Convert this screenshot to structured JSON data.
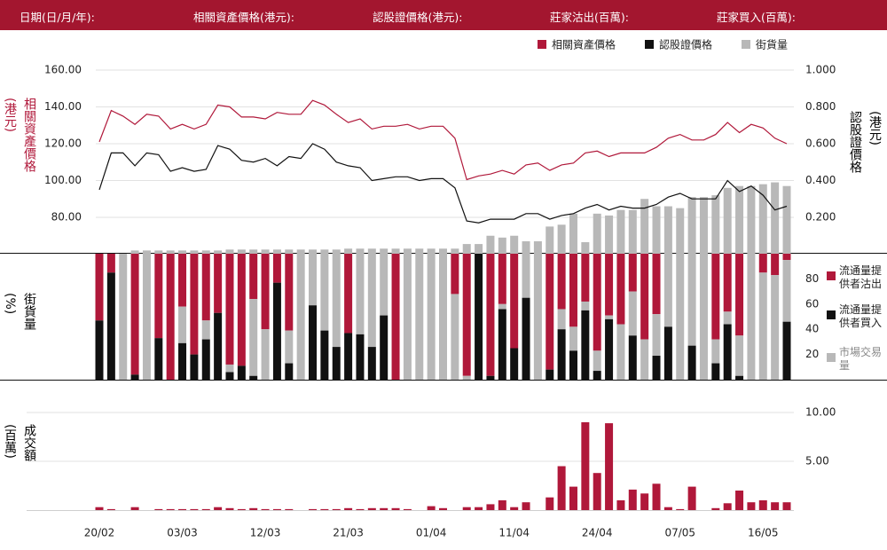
{
  "header": [
    "日期(日/月/年):",
    "相關資產價格(港元):",
    "認股證價格(港元):",
    "莊家沽出(百萬):",
    "莊家買入(百萬):"
  ],
  "chart_data": [
    {
      "type": "line",
      "y_label": [
        "相關資產價格",
        "(港元)"
      ],
      "y2_label": [
        "認股證價格",
        "(港元)"
      ],
      "ylim": [
        60,
        165
      ],
      "yticks": [
        {
          "value": 80,
          "label": "80.00"
        },
        {
          "value": 100,
          "label": "100.00"
        },
        {
          "value": 120,
          "label": "120.00"
        },
        {
          "value": 140,
          "label": "140.00"
        },
        {
          "value": 160,
          "label": "160.00"
        }
      ],
      "y2lim": [
        0,
        1.05
      ],
      "y2ticks": [
        {
          "value": 0.2,
          "label": "0.200"
        },
        {
          "value": 0.4,
          "label": "0.400"
        },
        {
          "value": 0.6,
          "label": "0.600"
        },
        {
          "value": 0.8,
          "label": "0.800"
        },
        {
          "value": 1.0,
          "label": "1.000"
        }
      ],
      "grid": true,
      "series": [
        {
          "name": "相關資產價格",
          "color": "#b0183a",
          "values": [
            121,
            138,
            135,
            130.5,
            136,
            135,
            128,
            130.5,
            128,
            130.5,
            141,
            140,
            134.5,
            134.5,
            133.5,
            137,
            136,
            136,
            143.5,
            141,
            136,
            131.5,
            133.5,
            128,
            129.5,
            129.5,
            130.5,
            128,
            129.5,
            129.5,
            123,
            100.5,
            102.5,
            103.5,
            105.5,
            103.5,
            108.5,
            109.5,
            105.5,
            108.5,
            109.5,
            115,
            116,
            113,
            115,
            115,
            115,
            118,
            123,
            125,
            122,
            122,
            125,
            131.5,
            126,
            130.5,
            128.5,
            123,
            120
          ]
        },
        {
          "name": "認股證價格",
          "color": "#111111",
          "axis": "y2",
          "values": [
            0.35,
            0.55,
            0.55,
            0.48,
            0.55,
            0.54,
            0.45,
            0.47,
            0.45,
            0.46,
            0.59,
            0.57,
            0.51,
            0.5,
            0.52,
            0.48,
            0.53,
            0.52,
            0.6,
            0.57,
            0.5,
            0.48,
            0.47,
            0.4,
            0.41,
            0.42,
            0.42,
            0.4,
            0.41,
            0.41,
            0.36,
            0.18,
            0.17,
            0.19,
            0.19,
            0.19,
            0.22,
            0.22,
            0.19,
            0.21,
            0.22,
            0.25,
            0.27,
            0.24,
            0.26,
            0.25,
            0.25,
            0.27,
            0.31,
            0.33,
            0.3,
            0.3,
            0.3,
            0.4,
            0.34,
            0.37,
            0.32,
            0.24,
            0.26
          ]
        },
        {
          "name": "街貨量",
          "color": "#b8b8b8",
          "axis": "y2",
          "kind": "bar",
          "values": [
            0,
            0,
            0,
            0.02,
            0.02,
            0.02,
            0.02,
            0.02,
            0.02,
            0.02,
            0.02,
            0.025,
            0.025,
            0.025,
            0.025,
            0.025,
            0.025,
            0.025,
            0.025,
            0.025,
            0.025,
            0.03,
            0.03,
            0.03,
            0.03,
            0.03,
            0.03,
            0.03,
            0.03,
            0.03,
            0.03,
            0.055,
            0.055,
            0.1,
            0.09,
            0.1,
            0.07,
            0.07,
            0.15,
            0.16,
            0.22,
            0.065,
            0.22,
            0.21,
            0.24,
            0.24,
            0.3,
            0.26,
            0.26,
            0.25,
            0.31,
            0.31,
            0.32,
            0.36,
            0.37,
            0.37,
            0.38,
            0.39,
            0.37
          ]
        }
      ]
    },
    {
      "type": "stacked_bar",
      "y_label": [
        "街貨量",
        "(%)"
      ],
      "ylim": [
        0,
        100
      ],
      "yticks": [
        20,
        40,
        60,
        80
      ],
      "series": [
        {
          "name": "流通量提供者沽出",
          "color": "#b0183a",
          "values": [
            53,
            15,
            0,
            96,
            0,
            67,
            100,
            42,
            80,
            53,
            47,
            88,
            89,
            36,
            60,
            23,
            61,
            0,
            0,
            0,
            0,
            63,
            0,
            0,
            0,
            100,
            0,
            0,
            0,
            0,
            32,
            97,
            0,
            97,
            40,
            75,
            0,
            0,
            92,
            44,
            58,
            38,
            77,
            49,
            56,
            30,
            68,
            48,
            0,
            0,
            0,
            0,
            68,
            46,
            65,
            0,
            15,
            17,
            5
          ]
        },
        {
          "name": "流通量提供者買入",
          "color": "#111111",
          "values": [
            47,
            85,
            0,
            4,
            0,
            33,
            0,
            29,
            20,
            32,
            53,
            6,
            11,
            3,
            0,
            77,
            13,
            0,
            59,
            39,
            26,
            37,
            36,
            26,
            51,
            0,
            0,
            0,
            0,
            0,
            0,
            0,
            100,
            3,
            56,
            25,
            65,
            0,
            8,
            40,
            23,
            55,
            7,
            48,
            0,
            35,
            0,
            19,
            42,
            0,
            27,
            0,
            13,
            44,
            3,
            0,
            0,
            0,
            46
          ]
        },
        {
          "name": "市場交易量",
          "color": "#b8b8b8",
          "values": [
            0,
            0,
            100,
            0,
            100,
            0,
            0,
            29,
            0,
            15,
            0,
            6,
            0,
            61,
            40,
            0,
            26,
            100,
            41,
            61,
            74,
            0,
            64,
            74,
            49,
            0,
            100,
            100,
            100,
            100,
            68,
            3,
            0,
            0,
            4,
            0,
            35,
            100,
            0,
            16,
            19,
            7,
            16,
            3,
            44,
            35,
            32,
            33,
            58,
            100,
            73,
            100,
            19,
            10,
            32,
            100,
            85,
            83,
            49
          ]
        }
      ]
    },
    {
      "type": "bar",
      "y_label": [
        "成交額",
        "(百萬)"
      ],
      "categories": [
        "20/02",
        null,
        null,
        null,
        null,
        null,
        null,
        "03/03",
        null,
        null,
        null,
        null,
        null,
        null,
        "12/03",
        null,
        null,
        null,
        null,
        null,
        null,
        "21/03",
        null,
        null,
        null,
        null,
        null,
        null,
        "01/04",
        null,
        null,
        null,
        null,
        null,
        null,
        "11/04",
        null,
        null,
        null,
        null,
        null,
        null,
        "24/04",
        null,
        null,
        null,
        null,
        null,
        null,
        "07/05",
        null,
        null,
        null,
        null,
        null,
        null,
        "16/05",
        null,
        null
      ],
      "ylim": [
        0,
        10.8
      ],
      "yticks": [
        {
          "value": 5,
          "label": "5.00"
        },
        {
          "value": 10,
          "label": "10.00"
        }
      ],
      "grid": true,
      "color": "#b0183a",
      "values": [
        0.3,
        0.1,
        0,
        0.3,
        0,
        0.1,
        0.1,
        0.1,
        0.1,
        0.1,
        0.3,
        0.2,
        0.1,
        0.2,
        0.1,
        0.1,
        0.1,
        0,
        0.1,
        0.1,
        0.1,
        0.2,
        0.1,
        0.2,
        0.2,
        0.2,
        0.1,
        0,
        0.4,
        0.2,
        0,
        0.3,
        0.3,
        0.6,
        1.0,
        0.3,
        0.8,
        0,
        1.3,
        4.5,
        2.4,
        9.0,
        3.8,
        8.9,
        1.0,
        2.1,
        1.7,
        2.7,
        0.3,
        0.1,
        2.4,
        0,
        0.2,
        0.7,
        2.0,
        0.8,
        1.0,
        0.8,
        0.8
      ]
    }
  ]
}
